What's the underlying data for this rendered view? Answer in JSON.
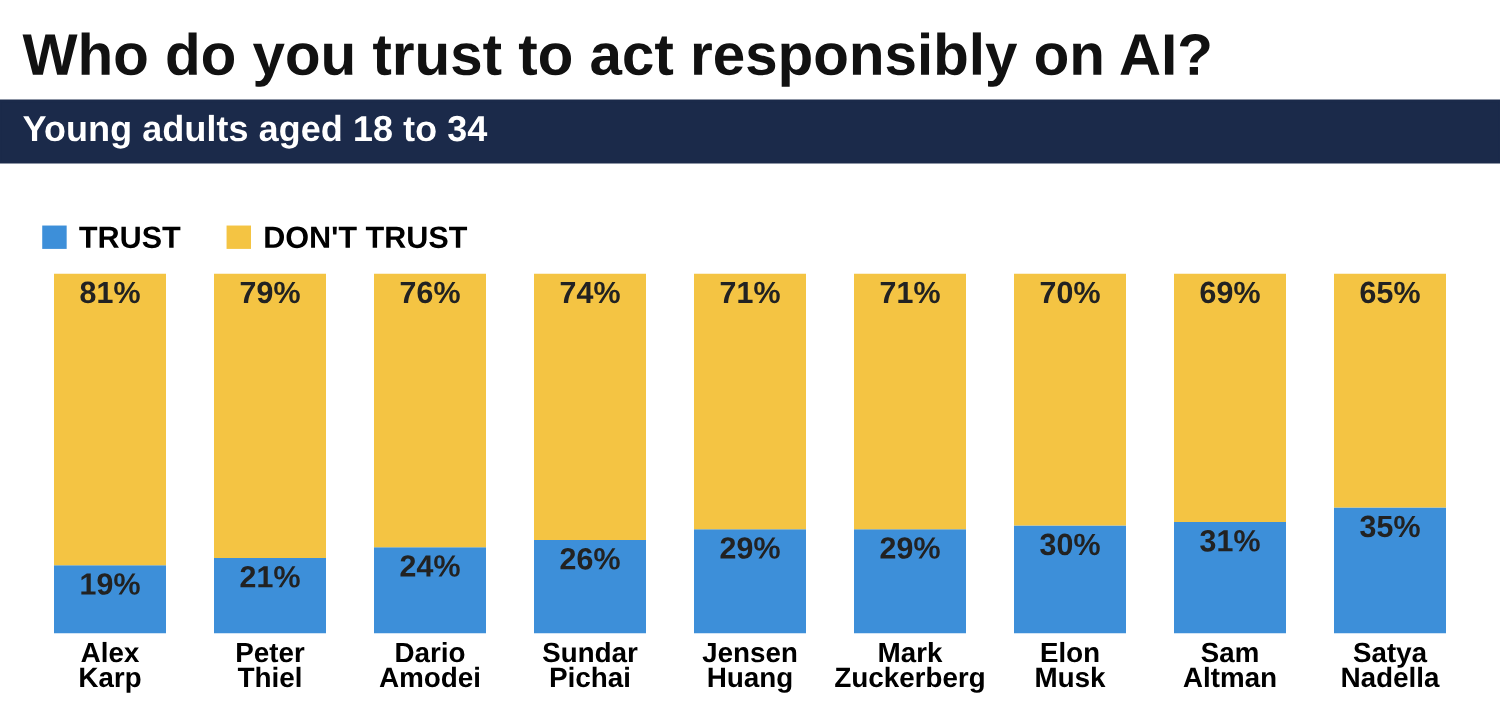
{
  "chart_data": {
    "type": "bar",
    "title": "Who do you trust to act responsibly on AI?",
    "subtitle": "Young adults aged 18 to 34",
    "stacked": true,
    "legend": "top left",
    "grid": false,
    "categories": [
      "Alex\nKarp",
      "Peter\nThiel",
      "Dario\nAmodei",
      "Sundar\nPichai",
      "Jensen\nHuang",
      "Mark\nZuckerberg",
      "Elon\nMusk",
      "Sam\nAltman",
      "Satya\nNadella"
    ],
    "series": [
      {
        "name": "TRUST",
        "color": "#3d8fd9",
        "values": [
          19,
          21,
          24,
          26,
          29,
          29,
          30,
          31,
          35
        ],
        "value_labels": [
          "19%",
          "21%",
          "24%",
          "26%",
          "29%",
          "29%",
          "30%",
          "31%",
          "35%"
        ]
      },
      {
        "name": "DON'T TRUST",
        "color": "#f4c443",
        "values": [
          81,
          79,
          76,
          74,
          71,
          71,
          70,
          69,
          65
        ],
        "value_labels": [
          "81%",
          "79%",
          "76%",
          "74%",
          "71%",
          "71%",
          "70%",
          "69%",
          "65%"
        ]
      }
    ]
  }
}
